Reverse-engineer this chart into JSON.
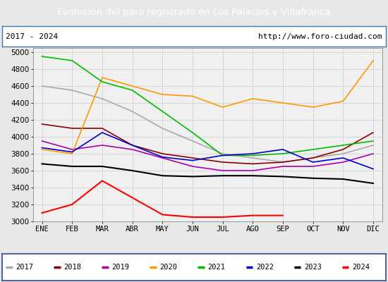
{
  "title": "Evolucion del paro registrado en Los Palacios y Villafranca",
  "subtitle_left": "2017 - 2024",
  "subtitle_right": "http://www.foro-ciudad.com",
  "months": [
    "ENE",
    "FEB",
    "MAR",
    "ABR",
    "MAY",
    "JUN",
    "JUL",
    "AGO",
    "SEP",
    "OCT",
    "NOV",
    "DIC"
  ],
  "ylim": [
    3000,
    5050
  ],
  "yticks": [
    3000,
    3200,
    3400,
    3600,
    3800,
    4000,
    4200,
    4400,
    4600,
    4800,
    5000
  ],
  "series": {
    "2017": {
      "color": "#aaaaaa",
      "linewidth": 1.2,
      "data": [
        4600,
        4550,
        4450,
        4300,
        4100,
        3950,
        3800,
        3750,
        3700,
        3750,
        3800,
        3900
      ]
    },
    "2018": {
      "color": "#8b0000",
      "linewidth": 1.2,
      "data": [
        4150,
        4100,
        4100,
        3900,
        3800,
        3750,
        3700,
        3680,
        3700,
        3750,
        3850,
        4050
      ]
    },
    "2019": {
      "color": "#aa00aa",
      "linewidth": 1.2,
      "data": [
        3950,
        3850,
        3900,
        3850,
        3750,
        3650,
        3600,
        3600,
        3650,
        3650,
        3700,
        3800
      ]
    },
    "2020": {
      "color": "#ff9900",
      "linewidth": 1.2,
      "data": [
        3850,
        3800,
        4700,
        4600,
        4500,
        4480,
        4350,
        4450,
        4400,
        4350,
        4420,
        4900
      ]
    },
    "2021": {
      "color": "#00bb00",
      "linewidth": 1.2,
      "data": [
        4950,
        4900,
        4650,
        4550,
        4300,
        4050,
        3780,
        3780,
        3800,
        3850,
        3900,
        3950
      ]
    },
    "2022": {
      "color": "#0000cc",
      "linewidth": 1.2,
      "data": [
        3870,
        3820,
        4050,
        3900,
        3760,
        3720,
        3780,
        3800,
        3850,
        3700,
        3750,
        3620
      ]
    },
    "2023": {
      "color": "#000000",
      "linewidth": 1.5,
      "data": [
        3680,
        3650,
        3650,
        3600,
        3540,
        3530,
        3540,
        3540,
        3530,
        3510,
        3500,
        3450
      ]
    },
    "2024": {
      "color": "#ff0000",
      "linewidth": 1.5,
      "data": [
        3100,
        3200,
        3480,
        3280,
        3080,
        3050,
        3050,
        3070,
        3070,
        null,
        null,
        null
      ]
    }
  },
  "background_color": "#e8e8e8",
  "title_bg_color": "#5b8fc9",
  "title_text_color": "#ffffff",
  "plot_bg_color": "#f0f0f0",
  "border_color": "#4477aa",
  "legend_border_color": "#334499"
}
